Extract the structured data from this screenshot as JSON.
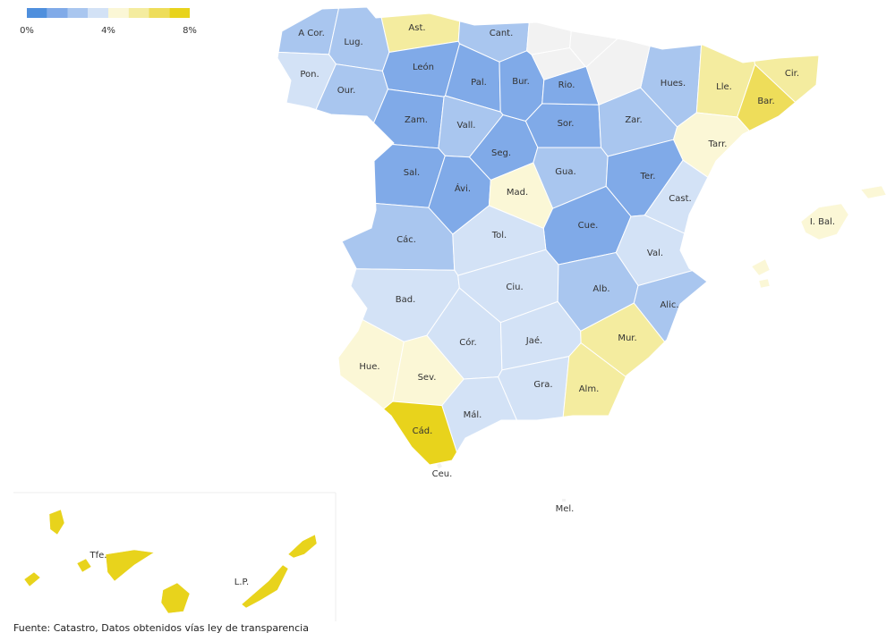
{
  "legend": {
    "colors": [
      "#4f8fdd",
      "#80aae8",
      "#a9c6ef",
      "#d3e2f6",
      "#fbf7d6",
      "#f4ec9f",
      "#eedd5a",
      "#e8d31c"
    ],
    "range": [
      0,
      8
    ],
    "ticks": [
      {
        "value": 0,
        "label": "0%"
      },
      {
        "value": 4,
        "label": "4%"
      },
      {
        "value": 8,
        "label": "8%"
      }
    ]
  },
  "provinces": [
    {
      "label": "A Cor.",
      "value": 2.5
    },
    {
      "label": "Lug.",
      "value": 2.5
    },
    {
      "label": "Ast.",
      "value": 5.5
    },
    {
      "label": "Cant.",
      "value": 2.5
    },
    {
      "label": "Pon.",
      "value": 3.5
    },
    {
      "label": "Our.",
      "value": 2.5
    },
    {
      "label": "León",
      "value": 1.5
    },
    {
      "label": "Pal.",
      "value": 1.5
    },
    {
      "label": "Bur.",
      "value": 1.5
    },
    {
      "label": "Rio.",
      "value": 1.5
    },
    {
      "label": "Hues.",
      "value": 2.5
    },
    {
      "label": "Lle.",
      "value": 5.5
    },
    {
      "label": "Cir.",
      "value": 5.5
    },
    {
      "label": "Bar.",
      "value": 6.5
    },
    {
      "label": "Zam.",
      "value": 1.5
    },
    {
      "label": "Vall.",
      "value": 2.5
    },
    {
      "label": "Sor.",
      "value": 1.5
    },
    {
      "label": "Zar.",
      "value": 2.5
    },
    {
      "label": "Tarr.",
      "value": 4.5
    },
    {
      "label": "Seg.",
      "value": 1.5
    },
    {
      "label": "Sal.",
      "value": 1.5
    },
    {
      "label": "Ávi.",
      "value": 1.5
    },
    {
      "label": "Gua.",
      "value": 2.5
    },
    {
      "label": "Mad.",
      "value": 4.5
    },
    {
      "label": "Ter.",
      "value": 1.5
    },
    {
      "label": "Cast.",
      "value": 3.5
    },
    {
      "label": "Cue.",
      "value": 1.5
    },
    {
      "label": "Các.",
      "value": 2.5
    },
    {
      "label": "Tol.",
      "value": 3.5
    },
    {
      "label": "Val.",
      "value": 3.5
    },
    {
      "label": "I. Bal.",
      "value": 4.5
    },
    {
      "label": "Bad.",
      "value": 3.5
    },
    {
      "label": "Ciu.",
      "value": 3.5
    },
    {
      "label": "Alb.",
      "value": 2.5
    },
    {
      "label": "Alic.",
      "value": 2.5
    },
    {
      "label": "Cór.",
      "value": 3.5
    },
    {
      "label": "Jaé.",
      "value": 3.5
    },
    {
      "label": "Mur.",
      "value": 5.5
    },
    {
      "label": "Hue.",
      "value": 4.5
    },
    {
      "label": "Sev.",
      "value": 4.5
    },
    {
      "label": "Gra.",
      "value": 3.5
    },
    {
      "label": "Alm.",
      "value": 5.5
    },
    {
      "label": "Mál.",
      "value": 3.5
    },
    {
      "label": "Cád.",
      "value": 7.5
    },
    {
      "label": "Ceu.",
      "value": null
    },
    {
      "label": "Mel.",
      "value": null
    },
    {
      "label": "Tfe.",
      "value": 7.5
    },
    {
      "label": "L.P.",
      "value": 7.5
    }
  ],
  "source": "Fuente: Catastro, Datos obtenidos vías ley de transparencia"
}
